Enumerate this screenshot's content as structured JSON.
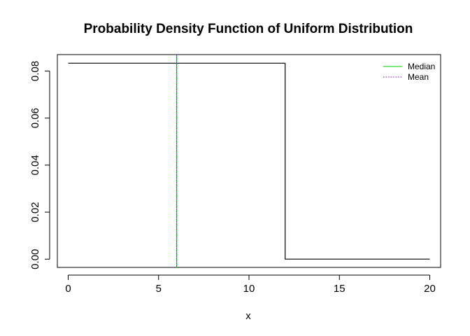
{
  "chart_data": {
    "type": "line",
    "title": "Probability Density Function of Uniform Distribution",
    "xlabel": "x",
    "ylabel": "",
    "xlim": [
      -0.6,
      20.6
    ],
    "ylim": [
      -0.0035,
      0.087
    ],
    "x_ticks": [
      0,
      5,
      10,
      15,
      20
    ],
    "x_tick_labels": [
      "0",
      "5",
      "10",
      "15",
      "20"
    ],
    "y_ticks": [
      0.0,
      0.02,
      0.04,
      0.06,
      0.08
    ],
    "y_tick_labels": [
      "0.00",
      "0.02",
      "0.04",
      "0.06",
      "0.08"
    ],
    "grid": false,
    "series": [
      {
        "points": [
          [
            0,
            0.08333
          ],
          [
            12,
            0.08333
          ],
          [
            12,
            0
          ],
          [
            20,
            0
          ]
        ],
        "color": "#000000",
        "style": "step"
      }
    ],
    "vlines": [
      {
        "name": "Median",
        "x": 6,
        "color": "#00cc00",
        "dash": "solid"
      },
      {
        "name": "Mean",
        "x": 6,
        "color": "#8b00ff",
        "dash": "dotted"
      }
    ],
    "legend": {
      "position": "top-right",
      "entries": [
        {
          "label": "Median",
          "color": "#00cc00",
          "dash": "solid"
        },
        {
          "label": "Mean",
          "color": "#8b00ff",
          "dash": "dotted"
        }
      ]
    }
  }
}
